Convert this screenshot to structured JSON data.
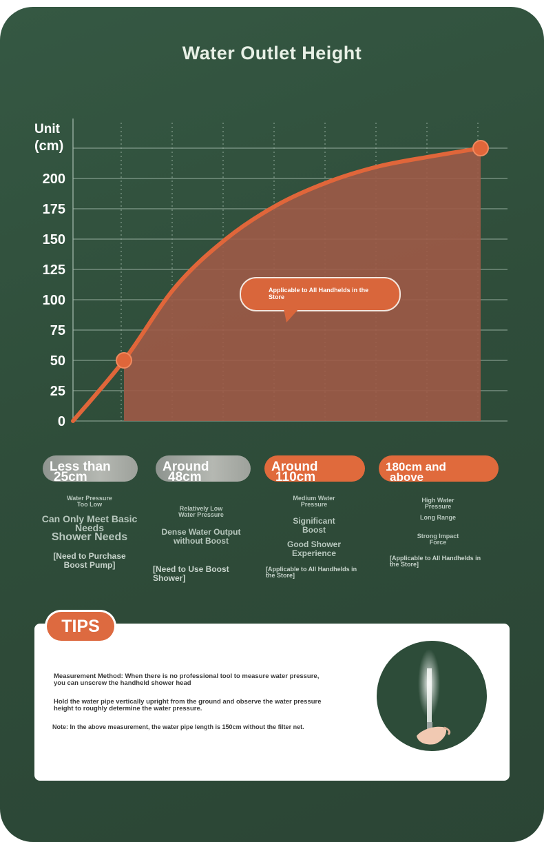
{
  "title": "Water Outlet Height",
  "chart_data": {
    "type": "area",
    "title": "Water Outlet Height",
    "ylabel_line1": "Unit",
    "ylabel_line2": "(cm)",
    "yticks": [
      0,
      25,
      50,
      75,
      100,
      125,
      150,
      175,
      200
    ],
    "ylim": [
      0,
      225
    ],
    "grid": true,
    "x": [
      0,
      0.125,
      0.25,
      0.375,
      0.5,
      0.625,
      0.75,
      0.875,
      1.0
    ],
    "values": [
      0,
      50,
      110,
      150,
      178,
      197,
      210,
      218,
      225
    ],
    "highlighted_points": [
      {
        "x": 0.125,
        "y": 50
      },
      {
        "x": 1.0,
        "y": 225
      }
    ],
    "annotation": "Applicable to All Handhelds in the Store"
  },
  "colors": {
    "background": "#2f4d3a",
    "curve": "#e0663a",
    "fill": "#9e5a47",
    "grid": "#a8bdb0",
    "accent": "#dd6a40"
  },
  "categories": [
    {
      "label_line1": "Less than",
      "label_line2": "25cm",
      "style": "grey",
      "pressure": "Water Pressure Too Low",
      "line2": "Can Only Meet Basic Needs",
      "line3": "Shower Needs",
      "note": "[Need to Purchase Boost Pump]"
    },
    {
      "label_line1": "Around",
      "label_line2": "48cm",
      "style": "grey",
      "pressure": "Relatively Low Water Pressure",
      "line2": "Dense Water Output without Boost",
      "line3": "",
      "note": "[Need to Use Boost Shower]"
    },
    {
      "label_line1": "Around",
      "label_line2": "110cm",
      "style": "orange",
      "pressure": "Medium Water Pressure",
      "line2": "Significant Boost",
      "line3": "Good Shower Experience",
      "note": "[Applicable to All Handhelds in the Store]"
    },
    {
      "label_line1": "180cm and",
      "label_line2": "above",
      "style": "orange",
      "pressure": "High Water Pressure",
      "line2": "Long Range",
      "line3": "Strong Impact Force",
      "note": "[Applicable to All Handhelds in the Store]"
    }
  ],
  "tips": {
    "badge": "TIPS",
    "p1": "Measurement Method: When there is no professional tool to measure water pressure, you can unscrew the handheld shower head",
    "p2": "Hold the water pipe vertically upright from the ground and observe the water pressure height to roughly determine the water pressure.",
    "p3": "Note: In the above measurement, the water pipe length is 150cm without the filter net.",
    "photo_icon": "hand-holding-pipe-with-water-jet"
  }
}
